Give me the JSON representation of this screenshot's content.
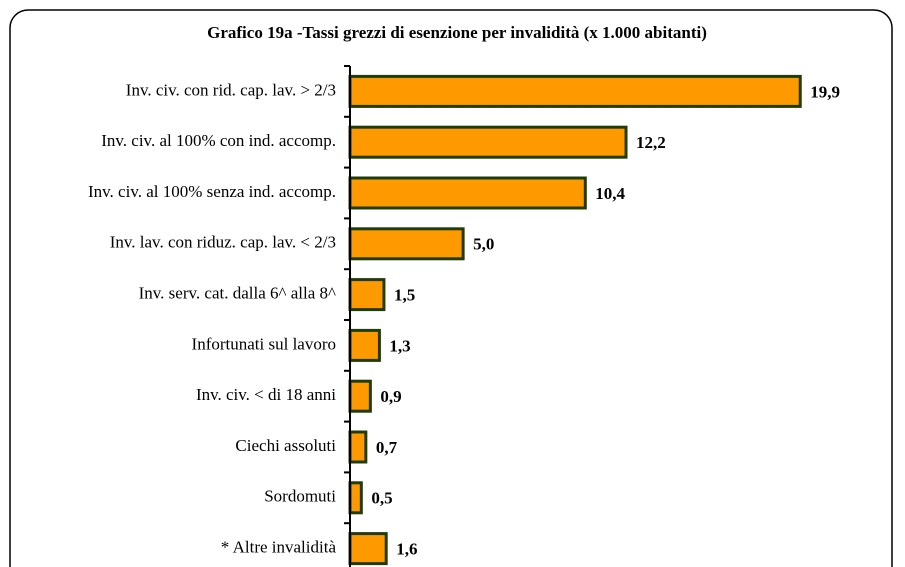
{
  "chart_data": {
    "type": "bar",
    "orientation": "horizontal",
    "title": "Grafico 19a -Tassi grezzi di esenzione per invalidità (x 1.000 abitanti)",
    "categories": [
      "Inv. civ. con rid. cap. lav. > 2/3",
      "Inv. civ. al 100% con ind. accomp.",
      "Inv. civ. al 100% senza ind. accomp.",
      "Inv. lav. con riduz. cap. lav. < 2/3",
      "Inv. serv. cat. dalla 6^ alla 8^",
      "Infortunati sul lavoro",
      "Inv. civ. < di 18 anni",
      "Ciechi assoluti",
      "Sordomuti",
      "* Altre invalidità"
    ],
    "values": [
      19.9,
      12.2,
      10.4,
      5.0,
      1.5,
      1.3,
      0.9,
      0.7,
      0.5,
      1.6
    ],
    "value_labels": [
      "19,9",
      "12,2",
      "10,4",
      "5,0",
      "1,5",
      "1,3",
      "0,9",
      "0,7",
      "0,5",
      "1,6"
    ],
    "color": "#ff9900",
    "edge_color": "#1f3d0c",
    "xlim": [
      0,
      24
    ]
  }
}
